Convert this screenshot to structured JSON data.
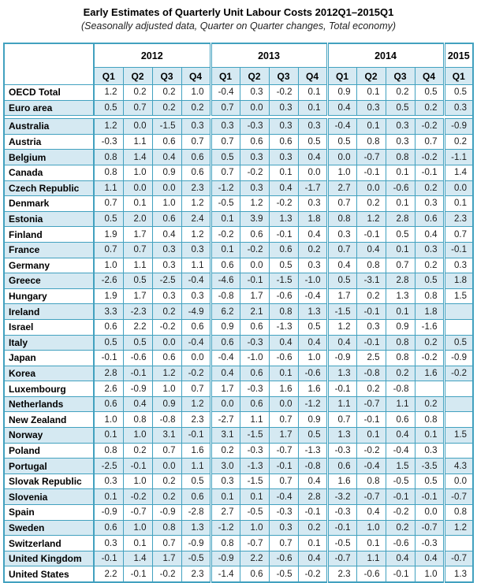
{
  "colors": {
    "border": "#42a1bf",
    "row_fill": "#d5e9f2",
    "text": "#1c1c1c"
  },
  "chart_data": {
    "type": "table",
    "title": "Early Estimates of Quarterly Unit Labour Costs 2012Q1–2015Q1",
    "subtitle": "(Seasonally adjusted data, Quarter on Quarter changes, Total economy)",
    "column_groups": [
      {
        "year": "2012",
        "quarters": [
          "Q1",
          "Q2",
          "Q3",
          "Q4"
        ]
      },
      {
        "year": "2013",
        "quarters": [
          "Q1",
          "Q2",
          "Q3",
          "Q4"
        ]
      },
      {
        "year": "2014",
        "quarters": [
          "Q1",
          "Q2",
          "Q3",
          "Q4"
        ]
      },
      {
        "year": "2015",
        "quarters": [
          "Q1"
        ]
      }
    ],
    "columns": [
      "2012-Q1",
      "2012-Q2",
      "2012-Q3",
      "2012-Q4",
      "2013-Q1",
      "2013-Q2",
      "2013-Q3",
      "2013-Q4",
      "2014-Q1",
      "2014-Q2",
      "2014-Q3",
      "2014-Q4",
      "2015-Q1"
    ],
    "sections": [
      {
        "name": "aggregates",
        "shade_first_row": false,
        "rows": [
          {
            "label": "OECD Total",
            "values": [
              "1.2",
              "0.2",
              "0.2",
              "1.0",
              "-0.4",
              "0.3",
              "-0.2",
              "0.1",
              "0.9",
              "0.1",
              "0.2",
              "0.5",
              "0.5"
            ]
          },
          {
            "label": "Euro area",
            "values": [
              "0.5",
              "0.7",
              "0.2",
              "0.2",
              "0.7",
              "0.0",
              "0.3",
              "0.1",
              "0.4",
              "0.3",
              "0.5",
              "0.2",
              "0.3"
            ]
          }
        ]
      },
      {
        "name": "countries",
        "shade_first_row": true,
        "rows": [
          {
            "label": "Australia",
            "values": [
              "1.2",
              "0.0",
              "-1.5",
              "0.3",
              "0.3",
              "-0.3",
              "0.3",
              "0.3",
              "-0.4",
              "0.1",
              "0.3",
              "-0.2",
              "-0.9"
            ]
          },
          {
            "label": "Austria",
            "values": [
              "-0.3",
              "1.1",
              "0.6",
              "0.7",
              "0.7",
              "0.6",
              "0.6",
              "0.5",
              "0.5",
              "0.8",
              "0.3",
              "0.7",
              "0.2"
            ]
          },
          {
            "label": "Belgium",
            "values": [
              "0.8",
              "1.4",
              "0.4",
              "0.6",
              "0.5",
              "0.3",
              "0.3",
              "0.4",
              "0.0",
              "-0.7",
              "0.8",
              "-0.2",
              "-1.1"
            ]
          },
          {
            "label": "Canada",
            "values": [
              "0.8",
              "1.0",
              "0.9",
              "0.6",
              "0.7",
              "-0.2",
              "0.1",
              "0.0",
              "1.0",
              "-0.1",
              "0.1",
              "-0.1",
              "1.4"
            ]
          },
          {
            "label": "Czech Republic",
            "values": [
              "1.1",
              "0.0",
              "0.0",
              "2.3",
              "-1.2",
              "0.3",
              "0.4",
              "-1.7",
              "2.7",
              "0.0",
              "-0.6",
              "0.2",
              "0.0"
            ]
          },
          {
            "label": "Denmark",
            "values": [
              "0.7",
              "0.1",
              "1.0",
              "1.2",
              "-0.5",
              "1.2",
              "-0.2",
              "0.3",
              "0.7",
              "0.2",
              "0.1",
              "0.3",
              "0.1"
            ]
          },
          {
            "label": "Estonia",
            "values": [
              "0.5",
              "2.0",
              "0.6",
              "2.4",
              "0.1",
              "3.9",
              "1.3",
              "1.8",
              "0.8",
              "1.2",
              "2.8",
              "0.6",
              "2.3"
            ]
          },
          {
            "label": "Finland",
            "values": [
              "1.9",
              "1.7",
              "0.4",
              "1.2",
              "-0.2",
              "0.6",
              "-0.1",
              "0.4",
              "0.3",
              "-0.1",
              "0.5",
              "0.4",
              "0.7"
            ]
          },
          {
            "label": "France",
            "values": [
              "0.7",
              "0.7",
              "0.3",
              "0.3",
              "0.1",
              "-0.2",
              "0.6",
              "0.2",
              "0.7",
              "0.4",
              "0.1",
              "0.3",
              "-0.1"
            ]
          },
          {
            "label": "Germany",
            "values": [
              "1.0",
              "1.1",
              "0.3",
              "1.1",
              "0.6",
              "0.0",
              "0.5",
              "0.3",
              "0.4",
              "0.8",
              "0.7",
              "0.2",
              "0.3"
            ]
          },
          {
            "label": "Greece",
            "values": [
              "-2.6",
              "0.5",
              "-2.5",
              "-0.4",
              "-4.6",
              "-0.1",
              "-1.5",
              "-1.0",
              "0.5",
              "-3.1",
              "2.8",
              "0.5",
              "1.8"
            ]
          },
          {
            "label": "Hungary",
            "values": [
              "1.9",
              "1.7",
              "0.3",
              "0.3",
              "-0.8",
              "1.7",
              "-0.6",
              "-0.4",
              "1.7",
              "0.2",
              "1.3",
              "0.8",
              "1.5"
            ]
          },
          {
            "label": "Ireland",
            "values": [
              "3.3",
              "-2.3",
              "0.2",
              "-4.9",
              "6.2",
              "2.1",
              "0.8",
              "1.3",
              "-1.5",
              "-0.1",
              "0.1",
              "1.8",
              ""
            ]
          },
          {
            "label": "Israel",
            "values": [
              "0.6",
              "2.2",
              "-0.2",
              "0.6",
              "0.9",
              "0.6",
              "-1.3",
              "0.5",
              "1.2",
              "0.3",
              "0.9",
              "-1.6",
              ""
            ]
          },
          {
            "label": "Italy",
            "values": [
              "0.5",
              "0.5",
              "0.0",
              "-0.4",
              "0.6",
              "-0.3",
              "0.4",
              "0.4",
              "0.4",
              "-0.1",
              "0.8",
              "0.2",
              "0.5"
            ]
          },
          {
            "label": "Japan",
            "values": [
              "-0.1",
              "-0.6",
              "0.6",
              "0.0",
              "-0.4",
              "-1.0",
              "-0.6",
              "1.0",
              "-0.9",
              "2.5",
              "0.8",
              "-0.2",
              "-0.9"
            ]
          },
          {
            "label": "Korea",
            "values": [
              "2.8",
              "-0.1",
              "1.2",
              "-0.2",
              "0.4",
              "0.6",
              "0.1",
              "-0.6",
              "1.3",
              "-0.8",
              "0.2",
              "1.6",
              "-0.2"
            ]
          },
          {
            "label": "Luxembourg",
            "values": [
              "2.6",
              "-0.9",
              "1.0",
              "0.7",
              "1.7",
              "-0.3",
              "1.6",
              "1.6",
              "-0.1",
              "0.2",
              "-0.8",
              "",
              ""
            ]
          },
          {
            "label": "Netherlands",
            "values": [
              "0.6",
              "0.4",
              "0.9",
              "1.2",
              "0.0",
              "0.6",
              "0.0",
              "-1.2",
              "1.1",
              "-0.7",
              "1.1",
              "0.2",
              ""
            ]
          },
          {
            "label": "New Zealand",
            "values": [
              "1.0",
              "0.8",
              "-0.8",
              "2.3",
              "-2.7",
              "1.1",
              "0.7",
              "0.9",
              "0.7",
              "-0.1",
              "0.6",
              "0.8",
              ""
            ]
          },
          {
            "label": "Norway",
            "values": [
              "0.1",
              "1.0",
              "3.1",
              "-0.1",
              "3.1",
              "-1.5",
              "1.7",
              "0.5",
              "1.3",
              "0.1",
              "0.4",
              "0.1",
              "1.5"
            ]
          },
          {
            "label": "Poland",
            "values": [
              "0.8",
              "0.2",
              "0.7",
              "1.6",
              "0.2",
              "-0.3",
              "-0.7",
              "-1.3",
              "-0.3",
              "-0.2",
              "-0.4",
              "0.3",
              ""
            ]
          },
          {
            "label": "Portugal",
            "values": [
              "-2.5",
              "-0.1",
              "0.0",
              "1.1",
              "3.0",
              "-1.3",
              "-0.1",
              "-0.8",
              "0.6",
              "-0.4",
              "1.5",
              "-3.5",
              "4.3"
            ]
          },
          {
            "label": "Slovak Republic",
            "values": [
              "0.3",
              "1.0",
              "0.2",
              "0.5",
              "0.3",
              "-1.5",
              "0.7",
              "0.4",
              "1.6",
              "0.8",
              "-0.5",
              "0.5",
              "0.0"
            ]
          },
          {
            "label": "Slovenia",
            "values": [
              "0.1",
              "-0.2",
              "0.2",
              "0.6",
              "0.1",
              "0.1",
              "-0.4",
              "2.8",
              "-3.2",
              "-0.7",
              "-0.1",
              "-0.1",
              "-0.7"
            ]
          },
          {
            "label": "Spain",
            "values": [
              "-0.9",
              "-0.7",
              "-0.9",
              "-2.8",
              "2.7",
              "-0.5",
              "-0.3",
              "-0.1",
              "-0.3",
              "0.4",
              "-0.2",
              "0.0",
              "0.8"
            ]
          },
          {
            "label": "Sweden",
            "values": [
              "0.6",
              "1.0",
              "0.8",
              "1.3",
              "-1.2",
              "1.0",
              "0.3",
              "0.2",
              "-0.1",
              "1.0",
              "0.2",
              "-0.7",
              "1.2"
            ]
          },
          {
            "label": "Switzerland",
            "values": [
              "0.3",
              "0.1",
              "0.7",
              "-0.9",
              "0.8",
              "-0.7",
              "0.7",
              "0.1",
              "-0.5",
              "0.1",
              "-0.6",
              "-0.3",
              ""
            ]
          },
          {
            "label": "United Kingdom",
            "values": [
              "-0.1",
              "1.4",
              "1.7",
              "-0.5",
              "-0.9",
              "2.2",
              "-0.6",
              "0.4",
              "-0.7",
              "1.1",
              "0.4",
              "0.4",
              "-0.7"
            ]
          },
          {
            "label": "United States",
            "values": [
              "2.2",
              "-0.1",
              "-0.2",
              "2.3",
              "-1.4",
              "0.6",
              "-0.5",
              "-0.2",
              "2.3",
              "-0.6",
              "-0.1",
              "1.0",
              "1.3"
            ]
          }
        ]
      }
    ],
    "layout_hints": {
      "grid": true,
      "header_rows": 2,
      "blank_cells_mean": "not yet available"
    }
  }
}
